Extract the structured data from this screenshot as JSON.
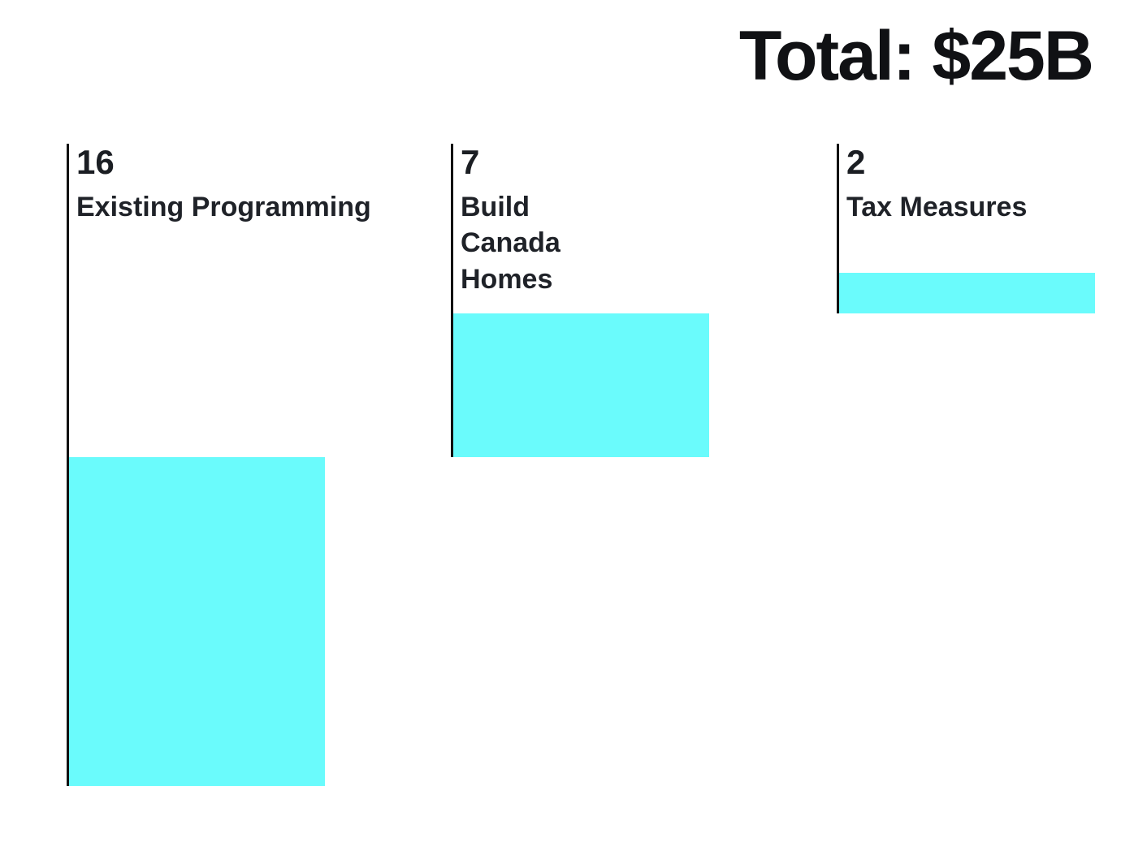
{
  "title": "Total: $25B",
  "colors": {
    "bar_fill": "#6AFBFC",
    "axis_line": "#121212",
    "title_text": "#101114",
    "label_text": "#1f2228"
  },
  "chart_data": {
    "type": "bar",
    "subtype": "waterfall-cascade",
    "title": "Total: $25B",
    "total_label": "Total: $25B",
    "total_value": 25,
    "unit": "$B",
    "categories": [
      "Existing Programming",
      "Build Canada Homes",
      "Tax Measures"
    ],
    "values": [
      16,
      7,
      2
    ],
    "data_labels": [
      "16",
      "7",
      "2"
    ],
    "bar_color": "#6AFBFC",
    "grid": false,
    "legend": "none",
    "axes": "none",
    "orientation": "vertical-stacked-cascade"
  },
  "columns": [
    {
      "value": "16",
      "label": "Existing Programming"
    },
    {
      "value": "7",
      "label": "Build Canada Homes"
    },
    {
      "value": "2",
      "label": "Tax Measures"
    }
  ]
}
